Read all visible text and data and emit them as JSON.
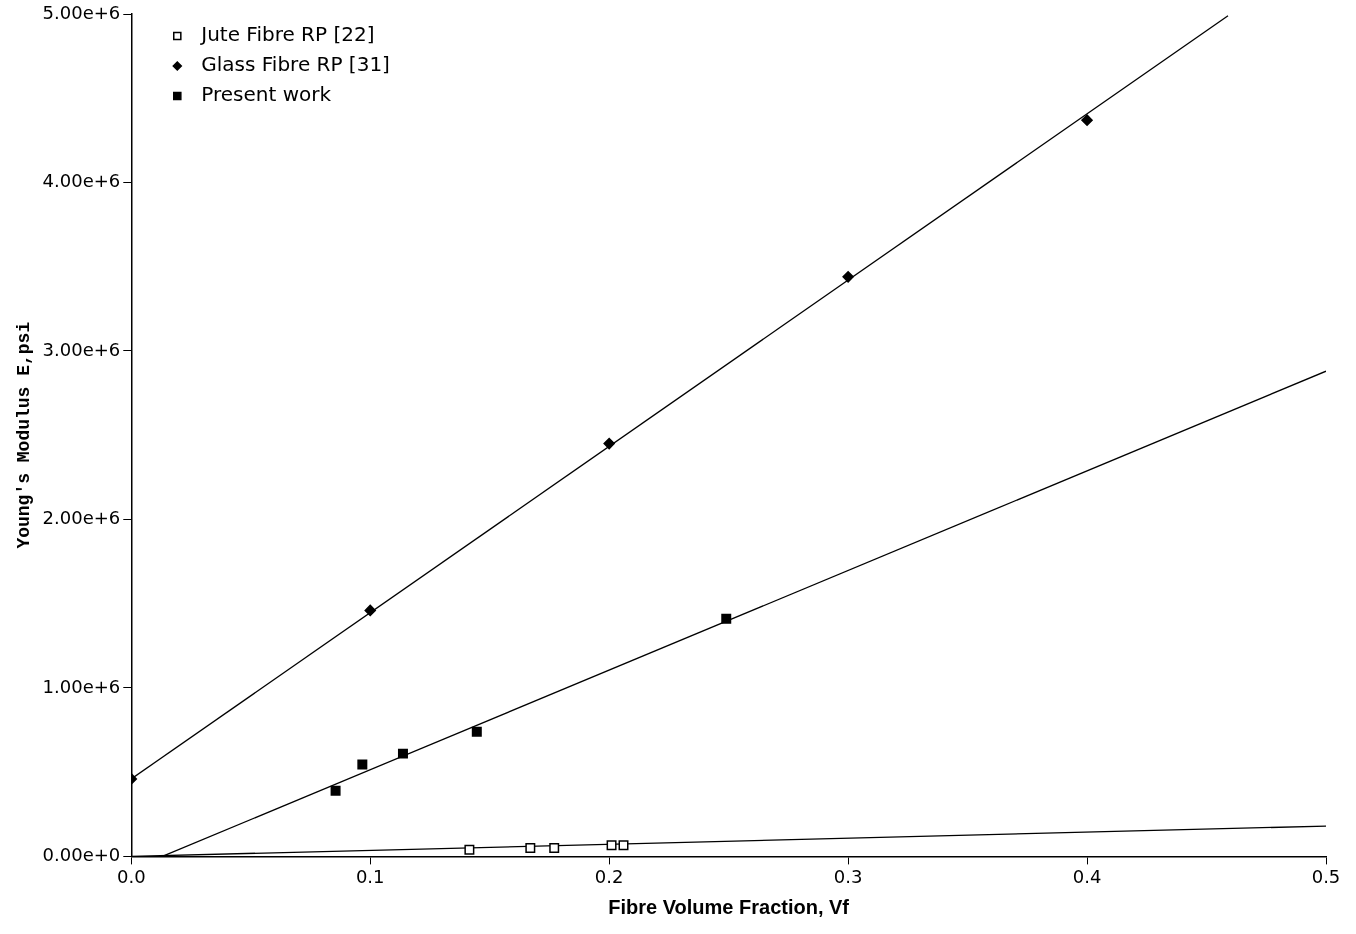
{
  "chart_data": {
    "type": "scatter",
    "xlabel": "Fibre Volume Fraction, Vf",
    "ylabel": "Young's Modulus E,psi",
    "xlim": [
      0,
      0.5
    ],
    "xticks": [
      {
        "value": 0,
        "label": "0.0"
      },
      0.1,
      0.2,
      0.3,
      0.4,
      0.5
    ],
    "ylim": [
      0,
      5000000
    ],
    "yticks": [
      {
        "value": 0,
        "label": "0.00e+0"
      },
      {
        "value": 1000000,
        "label": "1.00e+6"
      },
      {
        "value": 2000000,
        "label": "2.00e+6"
      },
      {
        "value": 3000000,
        "label": "3.00e+6"
      },
      {
        "value": 4000000,
        "label": "4.00e+6"
      },
      {
        "value": 5000000,
        "label": "5.00e+6"
      }
    ],
    "grid": false,
    "legend": "top left",
    "series": [
      {
        "name": "Jute Fibre RP [22]",
        "color": "#ffffff",
        "marker": "square",
        "x": [
          0.1415,
          0.167,
          0.177,
          0.201,
          0.206
        ],
        "values": [
          40000,
          50000,
          50000,
          66000,
          66000
        ]
      },
      {
        "name": "Glass Fibre RP [31]",
        "color": "#000000",
        "marker": "diamond",
        "x": [
          0,
          0.1,
          0.2,
          0.3,
          0.4
        ],
        "values": [
          460000,
          1460000,
          2450000,
          3440000,
          4370000
        ]
      },
      {
        "name": "Present work",
        "color": "#000000",
        "marker": "square",
        "x": [
          0.0855,
          0.0967,
          0.1137,
          0.1446,
          0.249
        ],
        "values": [
          390000,
          546000,
          610000,
          740000,
          1410000
        ]
      },
      {
        "type": "line",
        "color": "#000000",
        "marker": "none",
        "x": [
          0,
          0.5
        ],
        "values": [
          0,
          180000
        ]
      },
      {
        "type": "line",
        "color": "#000000",
        "marker": "none",
        "x": [
          0,
          0.459
        ],
        "values": [
          460000,
          4990000
        ]
      },
      {
        "type": "line",
        "color": "#000000",
        "marker": "none",
        "x": [
          0.013,
          0.5
        ],
        "values": [
          0,
          2880000
        ]
      }
    ]
  }
}
